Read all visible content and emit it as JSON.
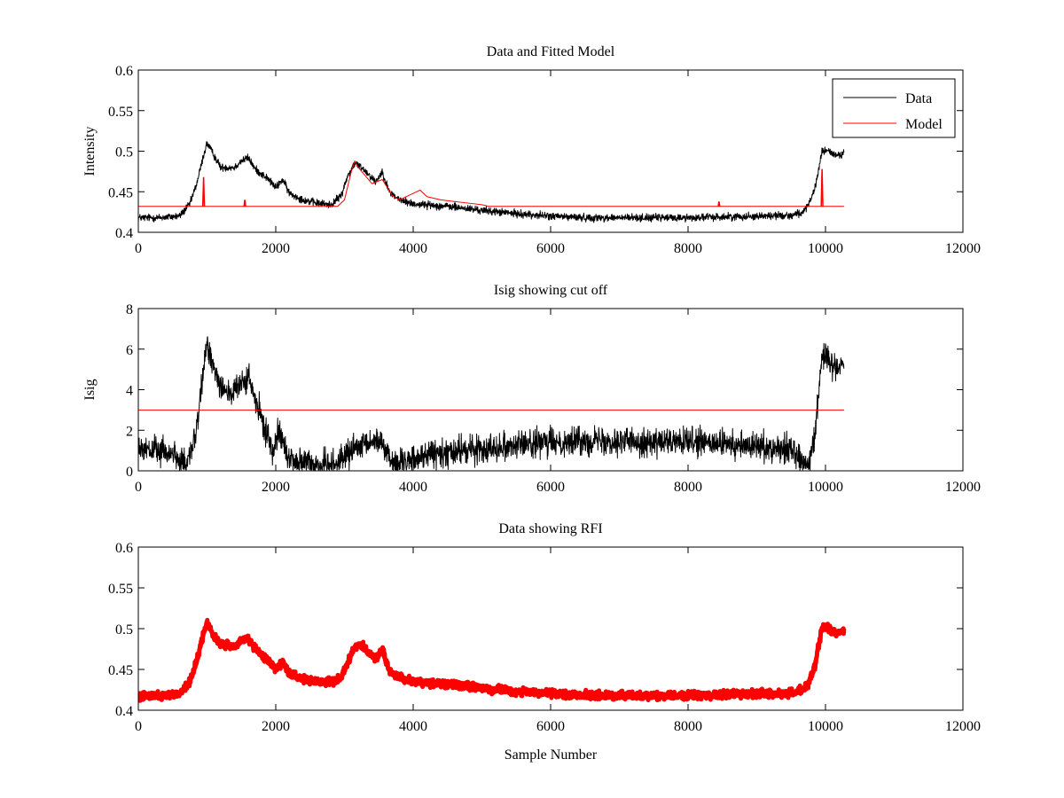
{
  "chart_data": [
    {
      "type": "line",
      "title": "Data and Fitted Model",
      "xlabel": "",
      "ylabel": "Intensity",
      "xlim": [
        0,
        12000
      ],
      "ylim": [
        0.4,
        0.6
      ],
      "xticks": [
        0,
        2000,
        4000,
        6000,
        8000,
        10000,
        12000
      ],
      "xtick_labels": [
        "0",
        "2000",
        "4000",
        "6000",
        "8000",
        "10000",
        "12000"
      ],
      "yticks": [
        0.4,
        0.45,
        0.5,
        0.55,
        0.6
      ],
      "ytick_labels": [
        "0.4",
        "0.45",
        "0.5",
        "0.55",
        "0.6"
      ],
      "grid": false,
      "legend_position": "top-right",
      "series": [
        {
          "name": "Data",
          "color": "#000000",
          "noise": 0.004,
          "x": [
            0,
            300,
            600,
            750,
            850,
            950,
            1000,
            1100,
            1200,
            1400,
            1500,
            1600,
            1700,
            1900,
            2000,
            2100,
            2200,
            2400,
            2600,
            2800,
            2950,
            3050,
            3150,
            3250,
            3350,
            3450,
            3550,
            3650,
            3800,
            4000,
            4500,
            5000,
            5500,
            6000,
            6500,
            7000,
            7500,
            8000,
            8500,
            9000,
            9500,
            9650,
            9750,
            9850,
            9950,
            10050,
            10150,
            10270
          ],
          "y": [
            0.418,
            0.418,
            0.42,
            0.435,
            0.46,
            0.495,
            0.51,
            0.495,
            0.48,
            0.48,
            0.488,
            0.492,
            0.478,
            0.465,
            0.455,
            0.465,
            0.448,
            0.44,
            0.436,
            0.434,
            0.445,
            0.47,
            0.485,
            0.48,
            0.472,
            0.462,
            0.475,
            0.45,
            0.44,
            0.435,
            0.432,
            0.427,
            0.423,
            0.42,
            0.418,
            0.418,
            0.418,
            0.418,
            0.419,
            0.42,
            0.421,
            0.424,
            0.432,
            0.455,
            0.5,
            0.5,
            0.495,
            0.498
          ]
        },
        {
          "name": "Model",
          "color": "#ff0000",
          "x": [
            0,
            2900,
            3000,
            3100,
            3150,
            3200,
            3300,
            3400,
            3550,
            3700,
            3800,
            4000,
            4100,
            4200,
            4400,
            4600,
            4800,
            5000,
            5100,
            10270
          ],
          "y": [
            0.432,
            0.432,
            0.44,
            0.475,
            0.488,
            0.48,
            0.47,
            0.46,
            0.465,
            0.445,
            0.44,
            0.448,
            0.452,
            0.444,
            0.44,
            0.438,
            0.436,
            0.434,
            0.432,
            0.432
          ],
          "spikes": [
            [
              950,
              0.468
            ],
            [
              1550,
              0.44
            ],
            [
              8450,
              0.438
            ],
            [
              9950,
              0.478
            ]
          ]
        }
      ]
    },
    {
      "type": "line",
      "title": "Isig showing cut off",
      "xlabel": "",
      "ylabel": "Isig",
      "xlim": [
        0,
        12000
      ],
      "ylim": [
        0,
        8
      ],
      "xticks": [
        0,
        2000,
        4000,
        6000,
        8000,
        10000,
        12000
      ],
      "xtick_labels": [
        "0",
        "2000",
        "4000",
        "6000",
        "8000",
        "10000",
        "12000"
      ],
      "yticks": [
        0,
        2,
        4,
        6,
        8
      ],
      "ytick_labels": [
        "0",
        "2",
        "4",
        "6",
        "8"
      ],
      "grid": false,
      "series": [
        {
          "color": "#000000",
          "noise": 0.6,
          "x": [
            0,
            300,
            550,
            700,
            850,
            950,
            1000,
            1100,
            1200,
            1350,
            1500,
            1600,
            1700,
            1800,
            1950,
            2050,
            2150,
            2300,
            2600,
            2900,
            3100,
            3300,
            3500,
            3600,
            3700,
            3900,
            4000,
            4200,
            4500,
            5000,
            5500,
            6000,
            6500,
            7000,
            7500,
            8000,
            8500,
            9000,
            9500,
            9650,
            9750,
            9850,
            9950,
            10050,
            10150,
            10270
          ],
          "y": [
            1.0,
            1.0,
            0.8,
            0.1,
            2.0,
            5.0,
            6.2,
            5.2,
            4.2,
            3.8,
            4.2,
            4.6,
            3.5,
            2.5,
            1.0,
            2.2,
            0.8,
            0.4,
            0.3,
            0.4,
            1.0,
            1.2,
            1.6,
            1.0,
            0.5,
            0.2,
            0.6,
            0.8,
            0.9,
            1.1,
            1.3,
            1.4,
            1.5,
            1.5,
            1.4,
            1.4,
            1.3,
            1.2,
            1.1,
            0.6,
            0.2,
            2.0,
            5.8,
            5.4,
            5.2,
            5.3
          ]
        },
        {
          "color": "#ff0000",
          "x": [
            0,
            10270
          ],
          "y": [
            3,
            3
          ]
        }
      ]
    },
    {
      "type": "scatter",
      "title": "Data showing RFI",
      "xlabel": "Sample Number",
      "ylabel": "",
      "xlim": [
        0,
        12000
      ],
      "ylim": [
        0.4,
        0.6
      ],
      "xticks": [
        0,
        2000,
        4000,
        6000,
        8000,
        10000,
        12000
      ],
      "xtick_labels": [
        "0",
        "2000",
        "4000",
        "6000",
        "8000",
        "10000",
        "12000"
      ],
      "yticks": [
        0.4,
        0.45,
        0.5,
        0.55,
        0.6
      ],
      "ytick_labels": [
        "0.4",
        "0.45",
        "0.5",
        "0.55",
        "0.6"
      ],
      "grid": false,
      "series": [
        {
          "color": "#ff0000",
          "noise": 0.004,
          "x": [
            0,
            300,
            600,
            750,
            850,
            950,
            1000,
            1100,
            1200,
            1400,
            1500,
            1600,
            1700,
            1900,
            2000,
            2100,
            2200,
            2400,
            2600,
            2800,
            2950,
            3050,
            3150,
            3250,
            3350,
            3450,
            3550,
            3650,
            3800,
            4000,
            4500,
            5000,
            5500,
            6000,
            6500,
            7000,
            7500,
            8000,
            8500,
            9000,
            9500,
            9650,
            9750,
            9850,
            9950,
            10050,
            10150,
            10270
          ],
          "y": [
            0.418,
            0.418,
            0.42,
            0.435,
            0.46,
            0.495,
            0.508,
            0.49,
            0.48,
            0.478,
            0.485,
            0.488,
            0.475,
            0.46,
            0.45,
            0.46,
            0.445,
            0.438,
            0.435,
            0.434,
            0.44,
            0.46,
            0.478,
            0.48,
            0.472,
            0.462,
            0.475,
            0.448,
            0.44,
            0.435,
            0.432,
            0.427,
            0.423,
            0.42,
            0.418,
            0.418,
            0.418,
            0.418,
            0.419,
            0.42,
            0.421,
            0.424,
            0.432,
            0.455,
            0.502,
            0.5,
            0.495,
            0.498
          ]
        }
      ]
    }
  ]
}
